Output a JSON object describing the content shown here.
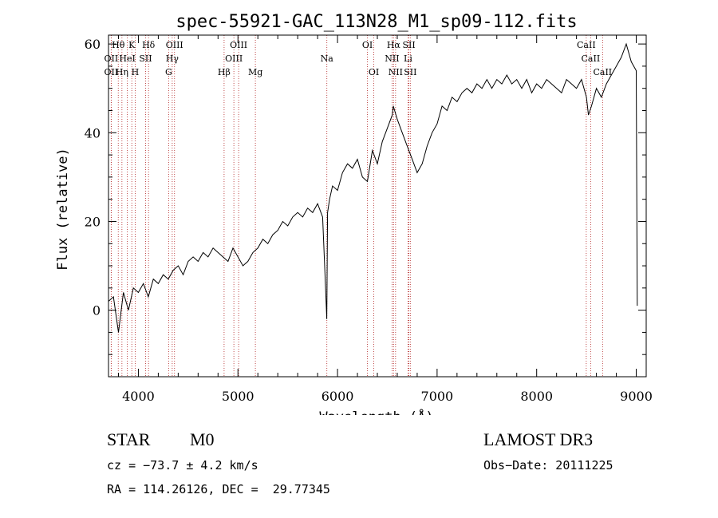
{
  "chart_data": {
    "type": "line",
    "title": "spec-55921-GAC_113N28_M1_sp09-112.fits",
    "xlabel": "Wavelength (Å)",
    "ylabel": "Flux (relative)",
    "xlim": [
      3700,
      9100
    ],
    "ylim": [
      -15,
      62
    ],
    "xticks": [
      4000,
      5000,
      6000,
      7000,
      8000,
      9000
    ],
    "yticks": [
      0,
      20,
      40,
      60
    ],
    "series": [
      {
        "name": "spectrum",
        "x": [
          3700,
          3750,
          3800,
          3850,
          3900,
          3950,
          4000,
          4050,
          4100,
          4150,
          4200,
          4250,
          4300,
          4350,
          4400,
          4450,
          4500,
          4550,
          4600,
          4650,
          4700,
          4750,
          4800,
          4850,
          4900,
          4950,
          5000,
          5050,
          5100,
          5150,
          5200,
          5250,
          5300,
          5350,
          5400,
          5450,
          5500,
          5550,
          5600,
          5650,
          5700,
          5750,
          5800,
          5850,
          5880,
          5892,
          5900,
          5920,
          5950,
          6000,
          6050,
          6100,
          6150,
          6200,
          6250,
          6300,
          6350,
          6400,
          6450,
          6500,
          6550,
          6560,
          6600,
          6650,
          6700,
          6750,
          6800,
          6850,
          6900,
          6950,
          7000,
          7050,
          7100,
          7150,
          7200,
          7250,
          7300,
          7350,
          7400,
          7450,
          7500,
          7550,
          7600,
          7650,
          7700,
          7750,
          7800,
          7850,
          7900,
          7950,
          8000,
          8050,
          8100,
          8150,
          8200,
          8250,
          8300,
          8350,
          8400,
          8450,
          8500,
          8520,
          8550,
          8600,
          8650,
          8700,
          8750,
          8800,
          8850,
          8900,
          8950,
          9000,
          9010
        ],
        "values": [
          2,
          3,
          -5,
          4,
          0,
          5,
          4,
          6,
          3,
          7,
          6,
          8,
          7,
          9,
          10,
          8,
          11,
          12,
          11,
          13,
          12,
          14,
          13,
          12,
          11,
          14,
          12,
          10,
          11,
          13,
          14,
          16,
          15,
          17,
          18,
          20,
          19,
          21,
          22,
          21,
          23,
          22,
          24,
          21,
          5,
          -2,
          22,
          25,
          28,
          27,
          31,
          33,
          32,
          34,
          30,
          29,
          36,
          33,
          38,
          41,
          44,
          46,
          43,
          40,
          37,
          34,
          31,
          33,
          37,
          40,
          42,
          46,
          45,
          48,
          47,
          49,
          50,
          49,
          51,
          50,
          52,
          50,
          52,
          51,
          53,
          51,
          52,
          50,
          52,
          49,
          51,
          50,
          52,
          51,
          50,
          49,
          52,
          51,
          50,
          52,
          48,
          44,
          46,
          50,
          48,
          51,
          53,
          55,
          57,
          60,
          56,
          54,
          1
        ]
      }
    ],
    "lines": [
      {
        "name": "Hθ",
        "x": 3798,
        "row": 0
      },
      {
        "name": "K",
        "x": 3934,
        "row": 0
      },
      {
        "name": "Hδ",
        "x": 4102,
        "row": 0
      },
      {
        "name": "OIII",
        "x": 4363,
        "row": 0
      },
      {
        "name": "OIII",
        "x": 5007,
        "row": 0
      },
      {
        "name": "OI",
        "x": 6300,
        "row": 0
      },
      {
        "name": "Hα",
        "x": 6563,
        "row": 0
      },
      {
        "name": "SII",
        "x": 6717,
        "row": 0
      },
      {
        "name": "CaII",
        "x": 8498,
        "row": 0
      },
      {
        "name": "OII",
        "x": 3727,
        "row": 1
      },
      {
        "name": "HeI",
        "x": 3889,
        "row": 1
      },
      {
        "name": "SII",
        "x": 4072,
        "row": 1
      },
      {
        "name": "Hγ",
        "x": 4340,
        "row": 1
      },
      {
        "name": "OIII",
        "x": 4959,
        "row": 1
      },
      {
        "name": "Na",
        "x": 5893,
        "row": 1
      },
      {
        "name": "NII",
        "x": 6548,
        "row": 1
      },
      {
        "name": "Li",
        "x": 6708,
        "row": 1
      },
      {
        "name": "CaII",
        "x": 8542,
        "row": 1
      },
      {
        "name": "OII",
        "x": 3727,
        "row": 2
      },
      {
        "name": "Hη",
        "x": 3835,
        "row": 2
      },
      {
        "name": "H",
        "x": 3968,
        "row": 2
      },
      {
        "name": "G",
        "x": 4304,
        "row": 2
      },
      {
        "name": "Hβ",
        "x": 4861,
        "row": 2
      },
      {
        "name": "Mg",
        "x": 5175,
        "row": 2
      },
      {
        "name": "OI",
        "x": 6364,
        "row": 2
      },
      {
        "name": "NII",
        "x": 6583,
        "row": 2
      },
      {
        "name": "SII",
        "x": 6731,
        "row": 2
      },
      {
        "name": "CaII",
        "x": 8662,
        "row": 2
      }
    ]
  },
  "info": {
    "class": "STAR",
    "subclass": "M0",
    "survey": "LAMOST DR3",
    "cz": "cz = −73.7 ± 4.2 km/s",
    "obs_date": "Obs−Date: 20111225",
    "coords": "RA = 114.26126, DEC =  29.77345"
  },
  "colors": {
    "line_marker": "#b22222",
    "spectrum": "#000000",
    "axes": "#000000"
  }
}
